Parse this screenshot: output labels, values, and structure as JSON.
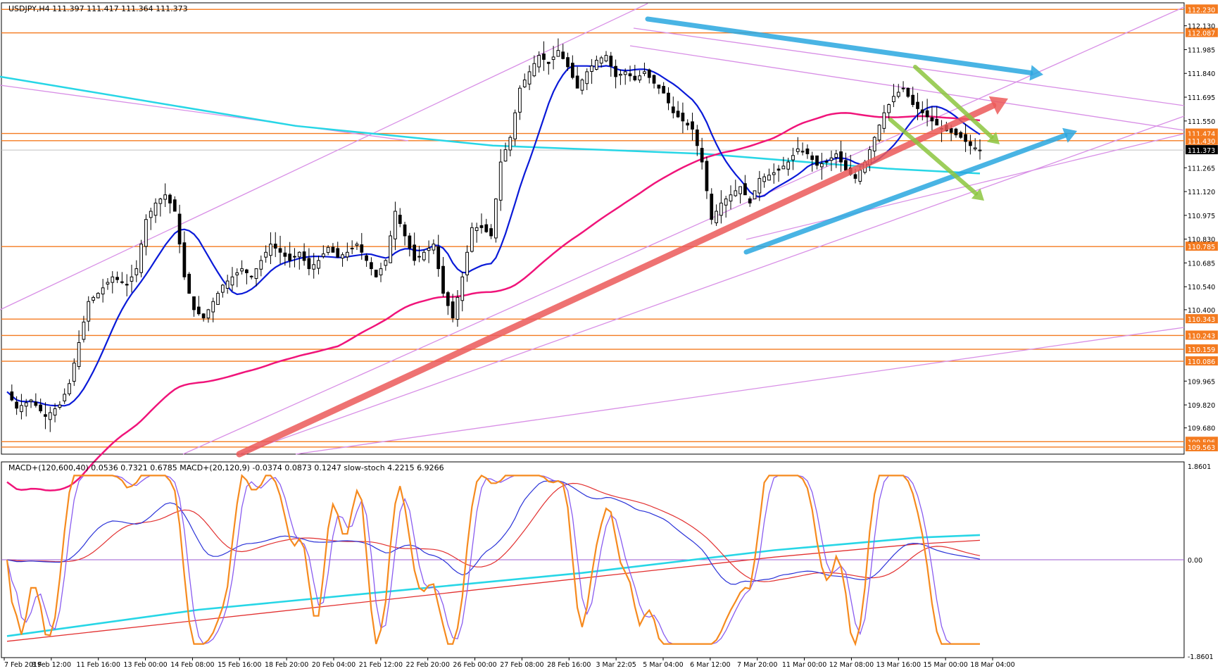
{
  "header": {
    "main_info": "USDJPY,H4  111.397 111.417 111.364 111.373",
    "indicator_info": "MACD+(120,600,40) 0.0536 0.7321 0.6785  MACD+(20,120,9) -0.0374 0.0873 0.1247  slow-stoch 4.2215 6.9266"
  },
  "colors": {
    "background": "#ffffff",
    "candle_bull": "#ffffff",
    "candle_bear": "#000000",
    "ma_fast": "#0a1ad8",
    "ma_slow": "#f0147a",
    "ma_long": "#27d6e6",
    "level_line": "#f47b20",
    "level_badge": "#f47b20",
    "channel_line": "#d88fe6",
    "arrow_blue": "#2aa7e0",
    "arrow_red": "#ec5a5a",
    "arrow_green": "#8cc63f",
    "stoch_orange": "#f68a1e",
    "stoch_violet": "#8a5cf0",
    "macd_blue": "#2a32d8",
    "macd_red": "#e23030",
    "zero_line": "#9b59d0"
  },
  "chart_data": {
    "type": "candlestick",
    "symbol": "USDJPY",
    "timeframe": "H4",
    "ohlc_last": {
      "open": 111.397,
      "high": 111.417,
      "low": 111.364,
      "close": 111.373
    },
    "ylim": [
      109.52,
      112.27
    ],
    "y_ticks": [
      "112.130",
      "111.985",
      "111.840",
      "111.695",
      "111.550",
      "111.265",
      "111.120",
      "110.975",
      "110.830",
      "110.685",
      "110.540",
      "110.400",
      "109.965",
      "109.820",
      "109.680"
    ],
    "x_ticks": [
      "7 Feb 2019",
      "8 Feb 12:00",
      "11 Feb 16:00",
      "13 Feb 00:00",
      "14 Feb 08:00",
      "15 Feb 16:00",
      "18 Feb 20:00",
      "20 Feb 04:00",
      "21 Feb 12:00",
      "22 Feb 20:00",
      "26 Feb 00:00",
      "27 Feb 08:00",
      "28 Feb 16:00",
      "3 Mar 22:05",
      "5 Mar 04:00",
      "6 Mar 12:00",
      "7 Mar 20:00",
      "11 Mar 00:00",
      "12 Mar 08:00",
      "13 Mar 16:00",
      "15 Mar 00:00",
      "18 Mar 04:00"
    ],
    "levels": [
      {
        "value": 112.23,
        "label": "112.230"
      },
      {
        "value": 112.087,
        "label": "112.087"
      },
      {
        "value": 111.474,
        "label": "111.474"
      },
      {
        "value": 111.43,
        "label": "111.430"
      },
      {
        "value": 111.373,
        "label": "111.373",
        "kind": "current"
      },
      {
        "value": 110.785,
        "label": "110.785"
      },
      {
        "value": 110.343,
        "label": "110.343"
      },
      {
        "value": 110.243,
        "label": "110.243"
      },
      {
        "value": 110.159,
        "label": "110.159"
      },
      {
        "value": 110.086,
        "label": "110.086"
      },
      {
        "value": 109.596,
        "label": "109.596"
      },
      {
        "value": 109.563,
        "label": "109.563"
      }
    ],
    "close_path": [
      [
        0,
        109.9
      ],
      [
        2,
        109.8
      ],
      [
        5,
        109.85
      ],
      [
        8,
        109.75
      ],
      [
        11,
        109.82
      ],
      [
        13,
        109.95
      ],
      [
        15,
        110.2
      ],
      [
        17,
        110.45
      ],
      [
        19,
        110.5
      ],
      [
        22,
        110.6
      ],
      [
        25,
        110.55
      ],
      [
        27,
        110.65
      ],
      [
        29,
        110.95
      ],
      [
        31,
        111.05
      ],
      [
        33,
        111.1
      ],
      [
        35,
        111.0
      ],
      [
        37,
        110.6
      ],
      [
        39,
        110.4
      ],
      [
        41,
        110.35
      ],
      [
        43,
        110.45
      ],
      [
        45,
        110.55
      ],
      [
        47,
        110.6
      ],
      [
        49,
        110.65
      ],
      [
        51,
        110.6
      ],
      [
        53,
        110.7
      ],
      [
        55,
        110.8
      ],
      [
        57,
        110.75
      ],
      [
        59,
        110.7
      ],
      [
        61,
        110.75
      ],
      [
        63,
        110.65
      ],
      [
        65,
        110.7
      ],
      [
        67,
        110.78
      ],
      [
        69,
        110.72
      ],
      [
        71,
        110.75
      ],
      [
        73,
        110.8
      ],
      [
        75,
        110.7
      ],
      [
        77,
        110.6
      ],
      [
        79,
        110.7
      ],
      [
        81,
        111.0
      ],
      [
        83,
        110.85
      ],
      [
        85,
        110.7
      ],
      [
        87,
        110.75
      ],
      [
        89,
        110.8
      ],
      [
        91,
        110.5
      ],
      [
        93,
        110.35
      ],
      [
        95,
        110.6
      ],
      [
        97,
        110.9
      ],
      [
        99,
        110.9
      ],
      [
        101,
        110.85
      ],
      [
        103,
        111.3
      ],
      [
        105,
        111.45
      ],
      [
        107,
        111.75
      ],
      [
        109,
        111.85
      ],
      [
        111,
        111.95
      ],
      [
        113,
        111.9
      ],
      [
        115,
        111.98
      ],
      [
        117,
        111.88
      ],
      [
        119,
        111.75
      ],
      [
        121,
        111.85
      ],
      [
        123,
        111.92
      ],
      [
        125,
        111.95
      ],
      [
        127,
        111.82
      ],
      [
        129,
        111.85
      ],
      [
        131,
        111.8
      ],
      [
        133,
        111.85
      ],
      [
        135,
        111.78
      ],
      [
        137,
        111.72
      ],
      [
        139,
        111.6
      ],
      [
        141,
        111.55
      ],
      [
        143,
        111.5
      ],
      [
        145,
        111.3
      ],
      [
        147,
        110.95
      ],
      [
        149,
        111.05
      ],
      [
        151,
        111.1
      ],
      [
        153,
        111.15
      ],
      [
        155,
        111.05
      ],
      [
        157,
        111.2
      ],
      [
        159,
        111.22
      ],
      [
        161,
        111.25
      ],
      [
        163,
        111.3
      ],
      [
        165,
        111.38
      ],
      [
        167,
        111.35
      ],
      [
        169,
        111.28
      ],
      [
        171,
        111.3
      ],
      [
        173,
        111.35
      ],
      [
        175,
        111.25
      ],
      [
        177,
        111.2
      ],
      [
        179,
        111.3
      ],
      [
        181,
        111.45
      ],
      [
        183,
        111.6
      ],
      [
        185,
        111.7
      ],
      [
        187,
        111.75
      ],
      [
        189,
        111.65
      ],
      [
        191,
        111.6
      ],
      [
        193,
        111.55
      ],
      [
        195,
        111.5
      ],
      [
        197,
        111.48
      ],
      [
        199,
        111.45
      ],
      [
        201,
        111.4
      ],
      [
        203,
        111.373
      ]
    ],
    "macd_cyan": [
      [
        0,
        -1.45
      ],
      [
        40,
        -0.95
      ],
      [
        80,
        -0.6
      ],
      [
        120,
        -0.25
      ],
      [
        160,
        0.18
      ],
      [
        190,
        0.42
      ],
      [
        203,
        0.47
      ]
    ],
    "macd_red_slow": [
      [
        0,
        -1.55
      ],
      [
        40,
        -1.15
      ],
      [
        80,
        -0.75
      ],
      [
        120,
        -0.35
      ],
      [
        160,
        0.05
      ],
      [
        190,
        0.3
      ],
      [
        203,
        0.37
      ]
    ]
  },
  "annotations": {
    "blue_arrows": 2,
    "red_arrows": 1,
    "green_arrows": 2
  },
  "subwindow": {
    "ylim": [
      -1.8601,
      1.8601
    ],
    "y_ticks": [
      "1.8601",
      "0.00",
      "-1.8601"
    ]
  }
}
